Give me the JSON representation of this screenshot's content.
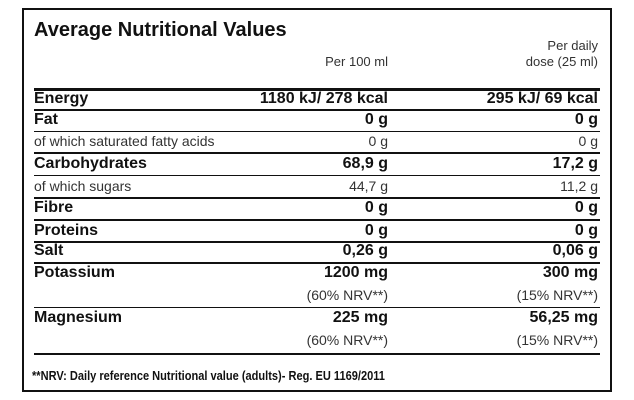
{
  "header": {
    "title": "Average Nutritional Values",
    "col1": "Per 100 ml",
    "col2": [
      "Per daily",
      "dose (25 ml)"
    ]
  },
  "table": {
    "rows": [
      {
        "label": "Energy",
        "per_100": "1180 kJ/ 278 kcal",
        "daily": "295 kJ/ 69 kcal"
      },
      {
        "label": "Fat",
        "per_100": "0 g",
        "daily": "0 g"
      },
      {
        "label": "of which saturated fatty acids",
        "per_100": "0 g",
        "daily": "0 g"
      },
      {
        "label": "Carbohydrates",
        "per_100": "68,9 g",
        "daily": "17,2 g"
      },
      {
        "label": "of which sugars",
        "per_100": "44,7 g",
        "daily": "11,2 g"
      },
      {
        "label": "Fibre",
        "per_100": "0 g",
        "daily": "0 g"
      },
      {
        "label": "Proteins",
        "per_100": "0 g",
        "daily": "0 g"
      },
      {
        "label": "Salt",
        "per_100": "0,26 g",
        "daily": "0,06 g"
      },
      {
        "label": "Potassium",
        "per_100": "1200 mg",
        "daily": "300 mg",
        "nrv_100": "(60% NRV**)",
        "nrv_daily": "(15% NRV**)"
      },
      {
        "label": "Magnesium",
        "per_100": "225 mg",
        "daily": "56,25 mg",
        "nrv_100": "(60% NRV**)",
        "nrv_daily": "(15% NRV**)"
      }
    ]
  },
  "footnote": "**NRV: Daily reference Nutritional value (adults)- Reg. EU 1169/2011"
}
